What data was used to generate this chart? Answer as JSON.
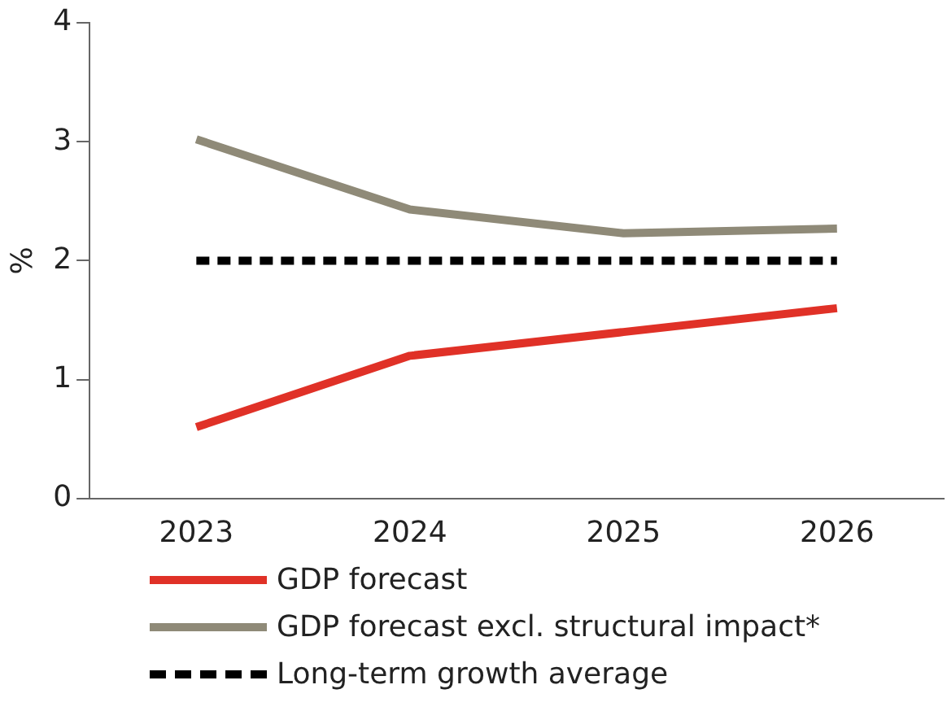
{
  "chart_data": {
    "type": "line",
    "ylabel": "%",
    "categories": [
      "2023",
      "2024",
      "2025",
      "2026"
    ],
    "series": [
      {
        "name": "GDP forecast",
        "color": "#e03127",
        "values": [
          0.6,
          1.2,
          1.4,
          1.6
        ]
      },
      {
        "name": "GDP forecast excl. structural impact*",
        "color": "#8f8a78",
        "values": [
          3.02,
          2.43,
          2.23,
          2.27
        ]
      },
      {
        "name": "Long-term growth average",
        "color": "#000000",
        "values": [
          2,
          2,
          2,
          2
        ],
        "line_style": "dashed"
      }
    ],
    "ylim": [
      0,
      4
    ],
    "yticks": [
      0,
      1,
      2,
      3,
      4
    ],
    "grid": false,
    "legend": "bottom",
    "marker": "none"
  }
}
